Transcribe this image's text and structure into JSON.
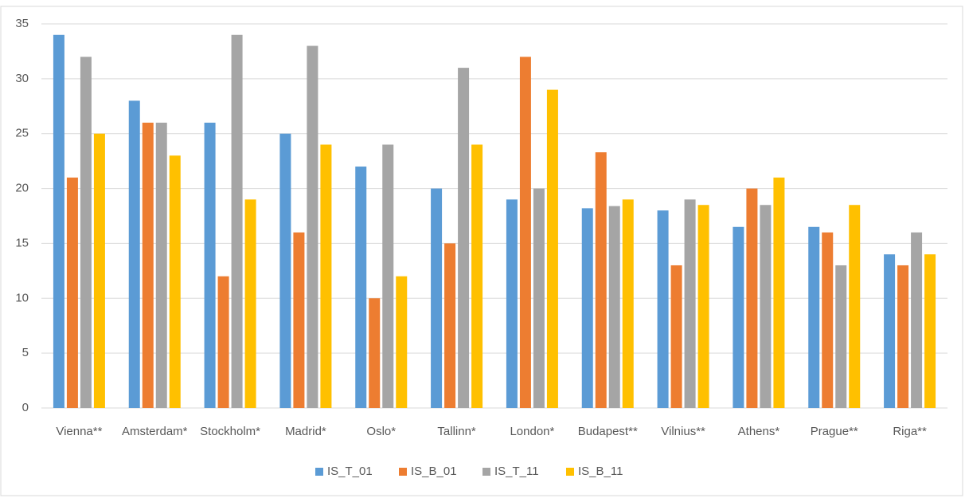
{
  "chart_data": {
    "type": "bar",
    "categories": [
      "Vienna**",
      "Amsterdam*",
      "Stockholm*",
      "Madrid*",
      "Oslo*",
      "Tallinn*",
      "London*",
      "Budapest**",
      "Vilnius**",
      "Athens*",
      "Prague**",
      "Riga**"
    ],
    "series": [
      {
        "name": "IS_T_01",
        "color": "#5b9bd5",
        "values": [
          34,
          28,
          26,
          25,
          22,
          20,
          19,
          18.2,
          18,
          16.5,
          16.5,
          14
        ]
      },
      {
        "name": "IS_B_01",
        "color": "#ed7d31",
        "values": [
          21,
          26,
          12,
          16,
          10,
          15,
          32,
          23.3,
          13,
          20,
          16,
          13
        ]
      },
      {
        "name": "IS_T_11",
        "color": "#a5a5a5",
        "values": [
          32,
          26,
          34,
          33,
          24,
          31,
          20,
          18.4,
          19,
          18.5,
          13,
          16
        ]
      },
      {
        "name": "IS_B_11",
        "color": "#ffc000",
        "values": [
          25,
          23,
          19,
          24,
          12,
          24,
          29,
          19,
          18.5,
          21,
          18.5,
          14
        ]
      }
    ],
    "ylim": [
      0,
      35
    ],
    "yticks": [
      0,
      5,
      10,
      15,
      20,
      25,
      30,
      35
    ],
    "grid": true,
    "legend": "bottom"
  }
}
